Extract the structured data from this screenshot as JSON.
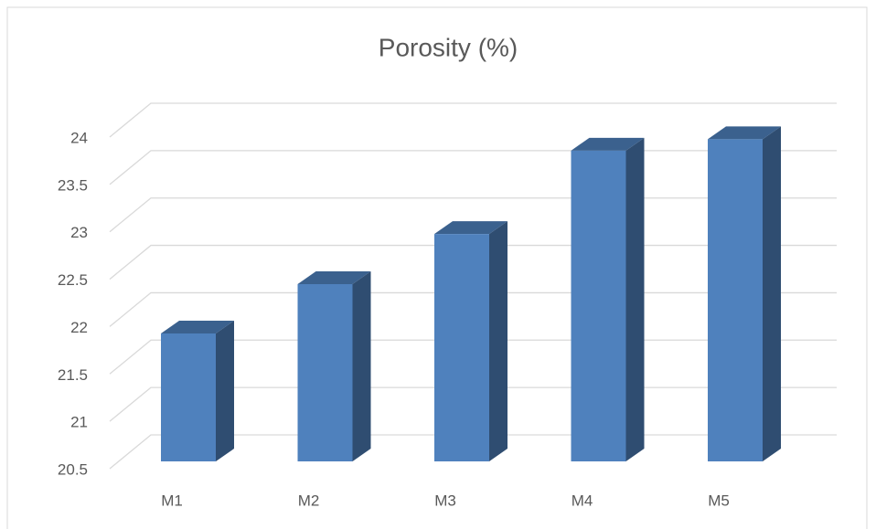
{
  "chart_data": {
    "type": "bar3d",
    "title": "Porosity (%)",
    "categories": [
      "M1",
      "M2",
      "M3",
      "M4",
      "M5"
    ],
    "values": [
      21.85,
      22.37,
      22.9,
      23.78,
      23.9
    ],
    "color": "#4f81bd",
    "ylim": [
      20.5,
      24
    ],
    "yticks": [
      20.5,
      21,
      21.5,
      22,
      22.5,
      23,
      23.5,
      24
    ],
    "grid": true
  }
}
